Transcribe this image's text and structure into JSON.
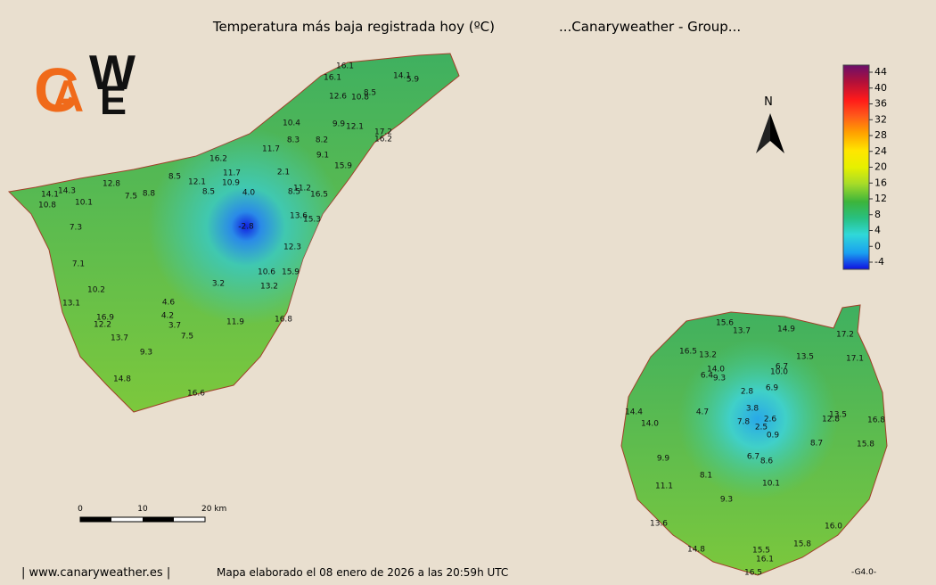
{
  "header": {
    "title": "Temperatura más baja registrada hoy (ºC)",
    "group": "...Canaryweather - Group..."
  },
  "logo": {
    "letters": [
      "C",
      "A",
      "W",
      "E"
    ]
  },
  "north": "N",
  "legend": {
    "ticks": [
      44,
      40,
      36,
      32,
      28,
      24,
      20,
      16,
      12,
      8,
      4,
      0,
      -4
    ]
  },
  "scale": {
    "labels": [
      "0",
      "10",
      "20 km"
    ]
  },
  "islands": {
    "tenerife": [
      "16.1",
      "16.1",
      "12.6",
      "10.8",
      "8.5",
      "14.1",
      "5.9",
      "10.4",
      "9.9",
      "12.1",
      "17.2",
      "16.2",
      "8.3",
      "8.2",
      "11.7",
      "9.1",
      "16.2",
      "15.9",
      "2.1",
      "11.7",
      "8.5",
      "12.1",
      "10.9",
      "12.8",
      "11.2",
      "8.5",
      "16.5",
      "14.1",
      "14.3",
      "7.5",
      "8.8",
      "8.5",
      "4.0",
      "10.1",
      "10.8",
      "13.6",
      "15.3",
      "-2.8",
      "7.3",
      "12.3",
      "7.1",
      "10.6",
      "15.9",
      "3.2",
      "13.2",
      "10.2",
      "13.1",
      "4.6",
      "4.2",
      "16.8",
      "11.9",
      "16.9",
      "12.2",
      "3.7",
      "7.5",
      "13.7",
      "9.3",
      "14.8",
      "16.6"
    ],
    "gran_canaria": [
      "15.6",
      "13.7",
      "14.9",
      "17.2",
      "16.5",
      "13.2",
      "13.5",
      "17.1",
      "14.0",
      "6.4",
      "9.3",
      "6.7",
      "10.0",
      "2.8",
      "6.9",
      "3.8",
      "14.4",
      "4.7",
      "2.6",
      "7.8",
      "2.5",
      "13.5",
      "12.8",
      "16.8",
      "14.0",
      "0.9",
      "8.7",
      "15.8",
      "9.9",
      "6.7",
      "8.6",
      "8.1",
      "11.1",
      "10.1",
      "9.3",
      "16.0",
      "13.6",
      "15.8",
      "14.8",
      "15.5",
      "16.1",
      "16.5"
    ]
  },
  "footer": {
    "site": "| www.canaryweather.es |",
    "made": "Mapa elaborado el 08 enero de 2026 a las 20:59h UTC",
    "version": "-G4.0-"
  }
}
